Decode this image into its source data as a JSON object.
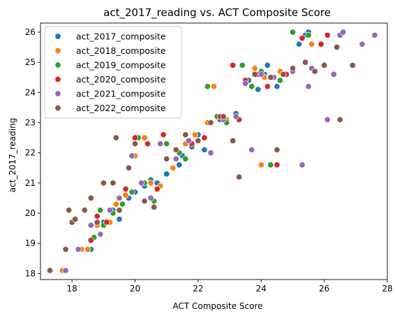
{
  "chart_data": {
    "type": "scatter",
    "title": "act_2017_reading vs. ACT Composite Score",
    "xlabel": "ACT Composite Score",
    "ylabel": "act_2017_reading",
    "xlim": [
      17.0,
      28.0
    ],
    "ylim": [
      17.8,
      26.3
    ],
    "x_ticks": [
      18,
      20,
      22,
      24,
      26,
      28
    ],
    "y_ticks": [
      18,
      19,
      20,
      21,
      22,
      23,
      24,
      25,
      26
    ],
    "grid": false,
    "legend_position": "top-left",
    "series": [
      {
        "name": "act_2017_composite",
        "color": "#1f77b4",
        "points": [
          [
            17.8,
            18.1
          ],
          [
            18.6,
            18.8
          ],
          [
            18.7,
            19.2
          ],
          [
            19.0,
            19.7
          ],
          [
            19.3,
            20.1
          ],
          [
            19.5,
            19.8
          ],
          [
            19.8,
            20.5
          ],
          [
            20.0,
            20.7
          ],
          [
            20.3,
            20.9
          ],
          [
            20.5,
            21.1
          ],
          [
            20.7,
            21.0
          ],
          [
            21.0,
            21.3
          ],
          [
            21.4,
            21.6
          ],
          [
            21.5,
            21.9
          ],
          [
            21.8,
            22.2
          ],
          [
            22.0,
            22.6
          ],
          [
            22.2,
            22.1
          ],
          [
            22.7,
            23.1
          ],
          [
            23.2,
            23.3
          ],
          [
            23.6,
            24.4
          ],
          [
            23.9,
            24.1
          ],
          [
            24.1,
            24.6
          ],
          [
            24.2,
            24.9
          ],
          [
            24.5,
            24.2
          ],
          [
            25.2,
            25.6
          ],
          [
            25.5,
            26.0
          ],
          [
            25.4,
            25.9
          ]
        ]
      },
      {
        "name": "act_2018_composite",
        "color": "#ff7f0e",
        "points": [
          [
            17.7,
            18.1
          ],
          [
            18.3,
            18.8
          ],
          [
            18.5,
            18.8
          ],
          [
            18.8,
            19.6
          ],
          [
            19.2,
            19.7
          ],
          [
            19.4,
            20.3
          ],
          [
            19.7,
            20.6
          ],
          [
            20.0,
            21.9
          ],
          [
            20.3,
            22.5
          ],
          [
            20.5,
            21.0
          ],
          [
            20.8,
            20.9
          ],
          [
            21.2,
            21.5
          ],
          [
            21.6,
            22.3
          ],
          [
            21.9,
            22.6
          ],
          [
            22.3,
            23.0
          ],
          [
            22.5,
            24.2
          ],
          [
            22.9,
            23.1
          ],
          [
            23.5,
            24.4
          ],
          [
            23.8,
            24.8
          ],
          [
            24.0,
            21.6
          ],
          [
            24.1,
            24.5
          ],
          [
            24.6,
            24.7
          ],
          [
            25.0,
            26.0
          ],
          [
            25.6,
            25.6
          ]
        ]
      },
      {
        "name": "act_2019_composite",
        "color": "#2ca02c",
        "points": [
          [
            18.7,
            19.2
          ],
          [
            18.9,
            20.1
          ],
          [
            19.0,
            19.6
          ],
          [
            19.3,
            20.0
          ],
          [
            19.6,
            20.3
          ],
          [
            19.9,
            20.7
          ],
          [
            20.1,
            22.5
          ],
          [
            20.3,
            21.0
          ],
          [
            20.6,
            20.4
          ],
          [
            21.0,
            22.3
          ],
          [
            21.4,
            22.0
          ],
          [
            21.6,
            21.8
          ],
          [
            22.3,
            24.2
          ],
          [
            22.6,
            23.2
          ],
          [
            22.9,
            23.0
          ],
          [
            23.4,
            24.9
          ],
          [
            23.7,
            24.2
          ],
          [
            24.0,
            24.7
          ],
          [
            24.3,
            21.6
          ],
          [
            24.6,
            24.4
          ],
          [
            25.0,
            26.0
          ],
          [
            25.5,
            25.9
          ]
        ]
      },
      {
        "name": "act_2020_composite",
        "color": "#d62728",
        "points": [
          [
            18.6,
            19.1
          ],
          [
            18.8,
            19.9
          ],
          [
            19.1,
            19.7
          ],
          [
            19.5,
            20.1
          ],
          [
            19.7,
            20.8
          ],
          [
            20.0,
            22.5
          ],
          [
            20.4,
            22.3
          ],
          [
            20.7,
            20.8
          ],
          [
            20.9,
            22.6
          ],
          [
            21.3,
            21.8
          ],
          [
            21.8,
            22.3
          ],
          [
            22.2,
            22.5
          ],
          [
            22.7,
            23.2
          ],
          [
            23.1,
            24.9
          ],
          [
            23.3,
            23.1
          ],
          [
            23.5,
            24.4
          ],
          [
            23.9,
            24.6
          ],
          [
            24.2,
            24.2
          ],
          [
            24.5,
            21.6
          ],
          [
            24.8,
            24.6
          ],
          [
            25.3,
            25.8
          ],
          [
            25.9,
            25.6
          ],
          [
            26.1,
            25.9
          ]
        ]
      },
      {
        "name": "act_2021_composite",
        "color": "#9467bd",
        "points": [
          [
            17.8,
            18.1
          ],
          [
            18.2,
            18.8
          ],
          [
            18.6,
            19.6
          ],
          [
            18.9,
            19.3
          ],
          [
            19.2,
            20.1
          ],
          [
            19.5,
            20.5
          ],
          [
            19.9,
            21.9
          ],
          [
            20.2,
            21.0
          ],
          [
            20.5,
            20.5
          ],
          [
            20.8,
            22.3
          ],
          [
            21.3,
            21.8
          ],
          [
            21.7,
            22.4
          ],
          [
            22.4,
            22.0
          ],
          [
            22.8,
            23.1
          ],
          [
            23.2,
            23.2
          ],
          [
            23.5,
            24.3
          ],
          [
            23.7,
            22.1
          ],
          [
            24.0,
            24.6
          ],
          [
            24.4,
            24.5
          ],
          [
            25.0,
            24.7
          ],
          [
            25.3,
            21.6
          ],
          [
            25.5,
            24.2
          ],
          [
            25.6,
            24.8
          ],
          [
            26.1,
            23.1
          ],
          [
            26.3,
            24.6
          ],
          [
            26.5,
            25.9
          ],
          [
            26.6,
            26.0
          ],
          [
            27.2,
            25.6
          ],
          [
            27.6,
            25.9
          ]
        ]
      },
      {
        "name": "act_2022_composite",
        "color": "#8c564b",
        "points": [
          [
            17.3,
            18.1
          ],
          [
            17.8,
            18.8
          ],
          [
            17.9,
            20.1
          ],
          [
            18.0,
            19.7
          ],
          [
            18.1,
            19.8
          ],
          [
            18.4,
            20.1
          ],
          [
            18.6,
            20.5
          ],
          [
            18.8,
            19.7
          ],
          [
            19.0,
            21.0
          ],
          [
            19.3,
            21.0
          ],
          [
            19.4,
            22.5
          ],
          [
            19.5,
            20.1
          ],
          [
            19.8,
            21.5
          ],
          [
            20.0,
            22.3
          ],
          [
            20.3,
            20.4
          ],
          [
            20.6,
            20.2
          ],
          [
            21.0,
            21.8
          ],
          [
            21.3,
            22.1
          ],
          [
            21.6,
            22.6
          ],
          [
            22.0,
            22.4
          ],
          [
            22.4,
            23.0
          ],
          [
            22.8,
            23.2
          ],
          [
            23.1,
            22.4
          ],
          [
            23.3,
            21.2
          ],
          [
            23.8,
            24.6
          ],
          [
            24.3,
            24.5
          ],
          [
            24.5,
            22.1
          ],
          [
            24.7,
            24.6
          ],
          [
            25.0,
            24.8
          ],
          [
            25.4,
            25.0
          ],
          [
            25.7,
            24.7
          ],
          [
            26.0,
            24.9
          ],
          [
            26.4,
            25.5
          ],
          [
            26.5,
            23.1
          ],
          [
            26.9,
            24.9
          ]
        ]
      }
    ]
  }
}
